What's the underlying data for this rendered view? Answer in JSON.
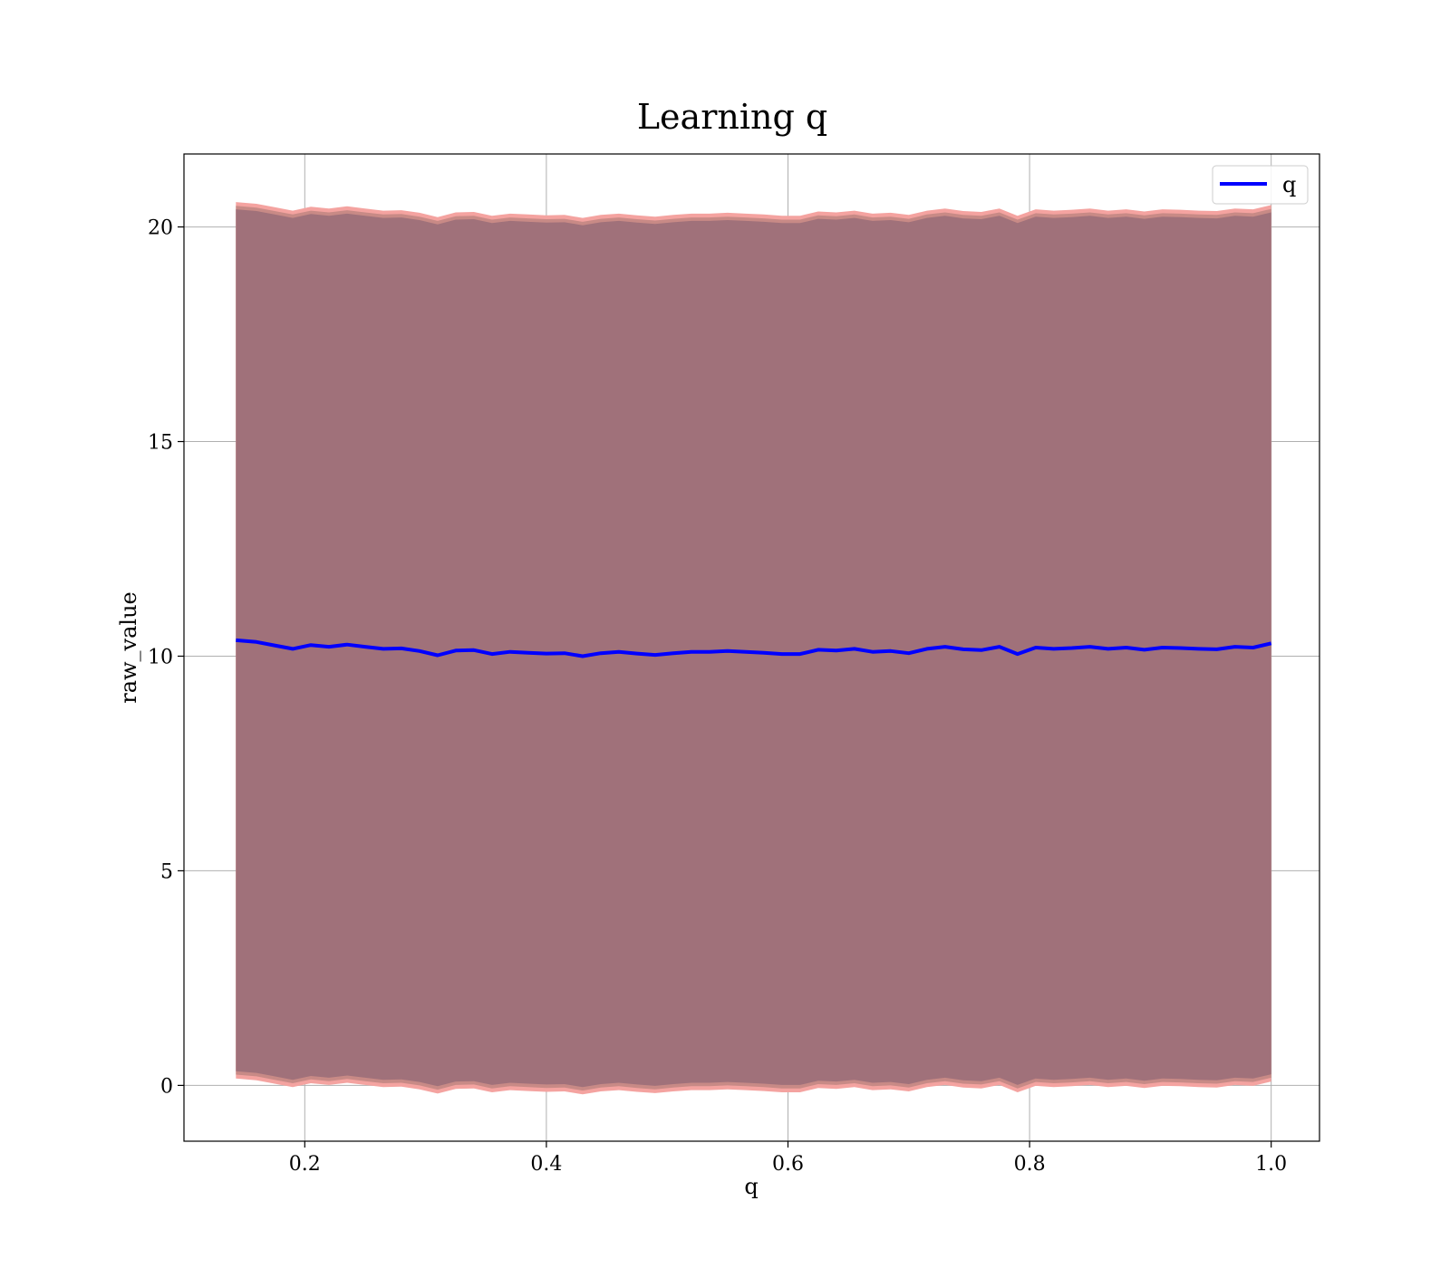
{
  "chart_data": {
    "type": "area",
    "title": "Learning q",
    "xlabel": "q",
    "ylabel": "raw_value",
    "xlim": [
      0.1,
      1.04
    ],
    "ylim": [
      -1.3,
      21.7
    ],
    "xticks": [
      0.2,
      0.4,
      0.6,
      0.8,
      1.0
    ],
    "xtick_labels": [
      "0.2",
      "0.4",
      "0.6",
      "0.8",
      "1.0"
    ],
    "yticks": [
      0,
      5,
      10,
      15,
      20
    ],
    "ytick_labels": [
      "0",
      "5",
      "10",
      "15",
      "20"
    ],
    "grid": true,
    "legend": {
      "position": "top-right",
      "entries": [
        "q"
      ]
    },
    "colors": {
      "line": "#0000ff",
      "band_outer": "#f4a3a0",
      "band_mid": "#c88a86",
      "band_inner": "#a0717a",
      "grid": "#b0b0b0"
    },
    "series": [
      {
        "name": "q",
        "x": [
          0.143,
          0.16,
          0.175,
          0.19,
          0.205,
          0.22,
          0.235,
          0.25,
          0.265,
          0.28,
          0.295,
          0.31,
          0.325,
          0.34,
          0.355,
          0.37,
          0.385,
          0.4,
          0.415,
          0.43,
          0.445,
          0.46,
          0.475,
          0.49,
          0.505,
          0.52,
          0.535,
          0.55,
          0.565,
          0.58,
          0.595,
          0.61,
          0.625,
          0.64,
          0.655,
          0.67,
          0.685,
          0.7,
          0.715,
          0.73,
          0.745,
          0.76,
          0.775,
          0.79,
          0.805,
          0.82,
          0.835,
          0.85,
          0.865,
          0.88,
          0.895,
          0.91,
          0.925,
          0.94,
          0.955,
          0.97,
          0.985,
          1.0
        ],
        "y": [
          10.37,
          10.33,
          10.25,
          10.17,
          10.26,
          10.22,
          10.27,
          10.22,
          10.17,
          10.18,
          10.12,
          10.02,
          10.13,
          10.14,
          10.05,
          10.1,
          10.08,
          10.06,
          10.07,
          10.0,
          10.07,
          10.1,
          10.06,
          10.03,
          10.07,
          10.1,
          10.1,
          10.12,
          10.1,
          10.08,
          10.05,
          10.05,
          10.15,
          10.13,
          10.17,
          10.1,
          10.12,
          10.07,
          10.17,
          10.22,
          10.16,
          10.14,
          10.22,
          10.05,
          10.2,
          10.17,
          10.19,
          10.22,
          10.17,
          10.2,
          10.15,
          10.2,
          10.19,
          10.17,
          10.16,
          10.22,
          10.2,
          10.3
        ],
        "lower": [
          0.33,
          0.29,
          0.21,
          0.13,
          0.22,
          0.18,
          0.23,
          0.18,
          0.13,
          0.14,
          0.08,
          -0.02,
          0.09,
          0.1,
          0.01,
          0.06,
          0.04,
          0.02,
          0.03,
          -0.04,
          0.03,
          0.06,
          0.02,
          -0.01,
          0.03,
          0.06,
          0.06,
          0.08,
          0.06,
          0.04,
          0.01,
          0.01,
          0.11,
          0.09,
          0.13,
          0.06,
          0.08,
          0.03,
          0.13,
          0.18,
          0.12,
          0.1,
          0.18,
          0.01,
          0.16,
          0.13,
          0.15,
          0.18,
          0.13,
          0.16,
          0.11,
          0.16,
          0.15,
          0.13,
          0.12,
          0.18,
          0.16,
          0.26
        ],
        "upper": [
          20.41,
          20.37,
          20.29,
          20.21,
          20.3,
          20.26,
          20.31,
          20.26,
          20.21,
          20.22,
          20.16,
          20.06,
          20.17,
          20.18,
          20.09,
          20.14,
          20.12,
          20.1,
          20.11,
          20.04,
          20.11,
          20.14,
          20.1,
          20.07,
          20.11,
          20.14,
          20.14,
          20.16,
          20.14,
          20.12,
          20.09,
          20.09,
          20.19,
          20.17,
          20.21,
          20.14,
          20.16,
          20.11,
          20.21,
          20.26,
          20.2,
          20.18,
          20.26,
          20.09,
          20.24,
          20.21,
          20.23,
          20.26,
          20.21,
          20.24,
          20.19,
          20.24,
          20.23,
          20.21,
          20.2,
          20.26,
          20.24,
          20.34
        ]
      }
    ]
  }
}
